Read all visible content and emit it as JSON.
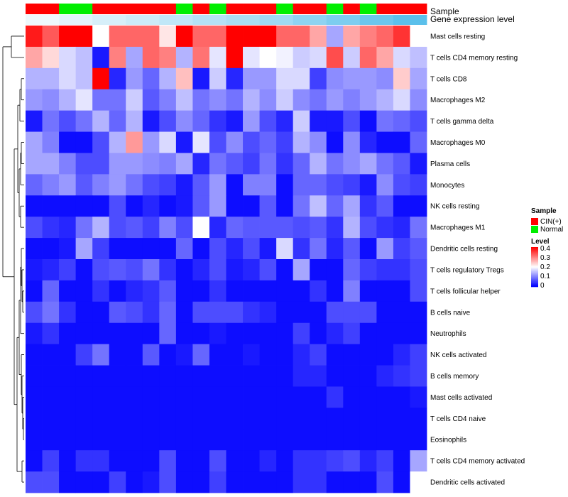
{
  "chart_data": {
    "type": "heatmap",
    "title": "",
    "rows": [
      "Mast cells resting",
      "T cells CD4 memory resting",
      "T cells CD8",
      "Macrophages M2",
      "T cells gamma delta",
      "Macrophages M0",
      "Plasma cells",
      "Monocytes",
      "NK cells resting",
      "Macrophages M1",
      "Dendritic cells resting",
      "T cells regulatory  Tregs",
      "T cells follicular helper",
      "B cells naive",
      "Neutrophils",
      "NK cells activated",
      "B cells memory",
      "Mast cells activated",
      "T cells CD4 naive",
      "Eosinophils",
      "T cells CD4 memory activated",
      "Dendritic cells activated"
    ],
    "sample_groups": [
      "CIN(+)",
      "CIN(+)",
      "Normal",
      "Normal",
      "CIN(+)",
      "CIN(+)",
      "CIN(+)",
      "CIN(+)",
      "CIN(+)",
      "Normal",
      "CIN(+)",
      "Normal",
      "CIN(+)",
      "CIN(+)",
      "CIN(+)",
      "Normal",
      "CIN(+)",
      "CIN(+)",
      "Normal",
      "CIN(+)",
      "Normal",
      "CIN(+)",
      "CIN(+)",
      "CIN(+)"
    ],
    "gene_expression_level": [
      0.1,
      0.1,
      0.12,
      0.12,
      0.14,
      0.14,
      0.16,
      0.16,
      0.18,
      0.18,
      0.2,
      0.2,
      0.22,
      0.22,
      0.24,
      0.24,
      0.27,
      0.27,
      0.3,
      0.3,
      0.33,
      0.33,
      0.36,
      0.36
    ],
    "values": [
      [
        0.38,
        0.33,
        0.4,
        0.4,
        0.2,
        0.32,
        0.32,
        0.32,
        0.22,
        0.4,
        0.32,
        0.32,
        0.4,
        0.4,
        0.4,
        0.32,
        0.32,
        0.27,
        0.13,
        0.27,
        0.3,
        0.32,
        0.36,
        0.2
      ],
      [
        0.27,
        0.23,
        0.17,
        0.15,
        0.02,
        0.3,
        0.13,
        0.32,
        0.3,
        0.14,
        0.31,
        0.18,
        0.4,
        0.18,
        0.2,
        0.19,
        0.16,
        0.17,
        0.34,
        0.16,
        0.32,
        0.27,
        0.17,
        0.15
      ],
      [
        0.14,
        0.14,
        0.17,
        0.15,
        0.4,
        0.03,
        0.12,
        0.08,
        0.14,
        0.25,
        0.02,
        0.16,
        0.03,
        0.12,
        0.12,
        0.17,
        0.17,
        0.05,
        0.11,
        0.12,
        0.12,
        0.11,
        0.24,
        0.13
      ],
      [
        0.12,
        0.11,
        0.14,
        0.18,
        0.09,
        0.09,
        0.16,
        0.07,
        0.1,
        0.15,
        0.09,
        0.11,
        0.09,
        0.14,
        0.11,
        0.16,
        0.11,
        0.09,
        0.12,
        0.1,
        0.12,
        0.14,
        0.17,
        0.11
      ],
      [
        0.02,
        0.09,
        0.06,
        0.09,
        0.14,
        0.08,
        0.14,
        0.02,
        0.06,
        0.11,
        0.08,
        0.04,
        0.02,
        0.12,
        0.06,
        0.03,
        0.16,
        0.02,
        0.02,
        0.06,
        0.01,
        0.09,
        0.08,
        0.06
      ],
      [
        0.13,
        0.1,
        0.01,
        0.01,
        0.06,
        0.14,
        0.28,
        0.12,
        0.17,
        0.02,
        0.18,
        0.06,
        0.11,
        0.06,
        0.08,
        0.05,
        0.14,
        0.11,
        0.01,
        0.11,
        0.03,
        0.01,
        0.01,
        0.08
      ],
      [
        0.13,
        0.13,
        0.1,
        0.06,
        0.06,
        0.12,
        0.12,
        0.11,
        0.1,
        0.13,
        0.03,
        0.09,
        0.07,
        0.05,
        0.09,
        0.04,
        0.08,
        0.14,
        0.09,
        0.11,
        0.13,
        0.09,
        0.07,
        0.02
      ],
      [
        0.08,
        0.1,
        0.12,
        0.07,
        0.1,
        0.12,
        0.09,
        0.06,
        0.05,
        0.02,
        0.07,
        0.12,
        0.01,
        0.1,
        0.1,
        0.01,
        0.08,
        0.08,
        0.06,
        0.05,
        0.02,
        0.11,
        0.06,
        0.05
      ],
      [
        0.01,
        0.01,
        0.01,
        0.01,
        0.01,
        0.06,
        0.01,
        0.03,
        0.01,
        0.02,
        0.07,
        0.12,
        0.01,
        0.01,
        0.07,
        0.01,
        0.09,
        0.15,
        0.08,
        0.13,
        0.04,
        0.07,
        0.01,
        0.01
      ],
      [
        0.06,
        0.04,
        0.03,
        0.09,
        0.14,
        0.06,
        0.07,
        0.05,
        0.1,
        0.06,
        0.2,
        0.03,
        0.08,
        0.07,
        0.07,
        0.07,
        0.06,
        0.07,
        0.04,
        0.14,
        0.06,
        0.04,
        0.03,
        0.09
      ],
      [
        0.01,
        0.01,
        0.02,
        0.13,
        0.05,
        0.01,
        0.01,
        0.01,
        0.01,
        0.08,
        0.01,
        0.06,
        0.03,
        0.06,
        0.02,
        0.17,
        0.04,
        0.09,
        0.03,
        0.07,
        0.01,
        0.12,
        0.05,
        0.07
      ],
      [
        0.02,
        0.03,
        0.05,
        0.01,
        0.06,
        0.07,
        0.06,
        0.09,
        0.04,
        0.01,
        0.03,
        0.06,
        0.02,
        0.03,
        0.06,
        0.01,
        0.13,
        0.01,
        0.01,
        0.08,
        0.05,
        0.04,
        0.04,
        0.06
      ],
      [
        0.01,
        0.08,
        0.01,
        0.01,
        0.04,
        0.01,
        0.03,
        0.04,
        0.07,
        0.01,
        0.01,
        0.04,
        0.01,
        0.01,
        0.01,
        0.01,
        0.01,
        0.04,
        0.01,
        0.1,
        0.01,
        0.01,
        0.01,
        0.06
      ],
      [
        0.06,
        0.09,
        0.04,
        0.01,
        0.01,
        0.07,
        0.06,
        0.04,
        0.08,
        0.01,
        0.06,
        0.06,
        0.06,
        0.04,
        0.03,
        0.01,
        0.01,
        0.01,
        0.06,
        0.06,
        0.06,
        0.01,
        0.01,
        0.01
      ],
      [
        0.02,
        0.04,
        0.01,
        0.01,
        0.01,
        0.01,
        0.01,
        0.01,
        0.08,
        0.01,
        0.01,
        0.02,
        0.01,
        0.01,
        0.01,
        0.01,
        0.05,
        0.01,
        0.03,
        0.05,
        0.01,
        0.01,
        0.01,
        0.01
      ],
      [
        0.01,
        0.01,
        0.01,
        0.05,
        0.09,
        0.01,
        0.01,
        0.07,
        0.01,
        0.02,
        0.08,
        0.01,
        0.01,
        0.02,
        0.01,
        0.01,
        0.03,
        0.05,
        0.01,
        0.01,
        0.01,
        0.01,
        0.03,
        0.05
      ],
      [
        0.01,
        0.01,
        0.01,
        0.01,
        0.01,
        0.01,
        0.01,
        0.01,
        0.01,
        0.01,
        0.01,
        0.01,
        0.01,
        0.01,
        0.01,
        0.01,
        0.03,
        0.03,
        0.01,
        0.01,
        0.01,
        0.03,
        0.04,
        0.05
      ],
      [
        0.01,
        0.01,
        0.01,
        0.01,
        0.01,
        0.01,
        0.01,
        0.01,
        0.01,
        0.01,
        0.01,
        0.01,
        0.01,
        0.01,
        0.01,
        0.01,
        0.01,
        0.01,
        0.04,
        0.01,
        0.01,
        0.01,
        0.01,
        0.02
      ],
      [
        0.01,
        0.01,
        0.01,
        0.01,
        0.01,
        0.01,
        0.01,
        0.01,
        0.01,
        0.01,
        0.01,
        0.01,
        0.01,
        0.01,
        0.01,
        0.01,
        0.01,
        0.01,
        0.01,
        0.01,
        0.01,
        0.01,
        0.01,
        0.01
      ],
      [
        0.01,
        0.01,
        0.01,
        0.01,
        0.01,
        0.01,
        0.01,
        0.01,
        0.01,
        0.01,
        0.01,
        0.01,
        0.01,
        0.01,
        0.01,
        0.01,
        0.01,
        0.01,
        0.01,
        0.01,
        0.01,
        0.01,
        0.01,
        0.01
      ],
      [
        0.01,
        0.05,
        0.01,
        0.04,
        0.04,
        0.01,
        0.01,
        0.01,
        0.06,
        0.01,
        0.01,
        0.06,
        0.01,
        0.01,
        0.03,
        0.01,
        0.04,
        0.04,
        0.05,
        0.06,
        0.03,
        0.05,
        0.01,
        0.13
      ],
      [
        0.06,
        0.06,
        0.01,
        0.01,
        0.01,
        0.05,
        0.01,
        0.02,
        0.06,
        0.01,
        0.01,
        0.05,
        0.01,
        0.01,
        0.01,
        0.01,
        0.04,
        0.04,
        0.01,
        0.01,
        0.01,
        0.06,
        0.01,
        0.2
      ]
    ],
    "annotation_labels": {
      "sample": "Sample",
      "gene_level": "Gene expression level"
    },
    "legend": {
      "sample_title": "Sample",
      "sample_entries": [
        {
          "label": "CIN(+)",
          "color": "#ff0000"
        },
        {
          "label": "Normal",
          "color": "#00ee00"
        }
      ],
      "level_title": "Level",
      "level_ticks": [
        0.4,
        0.3,
        0.2,
        0.1,
        0
      ],
      "level_tick_labels": [
        "0.4",
        "0.3",
        "0.2",
        "0.1",
        "0"
      ],
      "placement": "right"
    },
    "color_scale": {
      "low": "#0000ff",
      "mid": "#ffffff",
      "high": "#ff0000",
      "min": 0,
      "max": 0.4
    },
    "gene_level_colors": {
      "low": "#eef8fc",
      "high": "#5bc0eb"
    }
  }
}
